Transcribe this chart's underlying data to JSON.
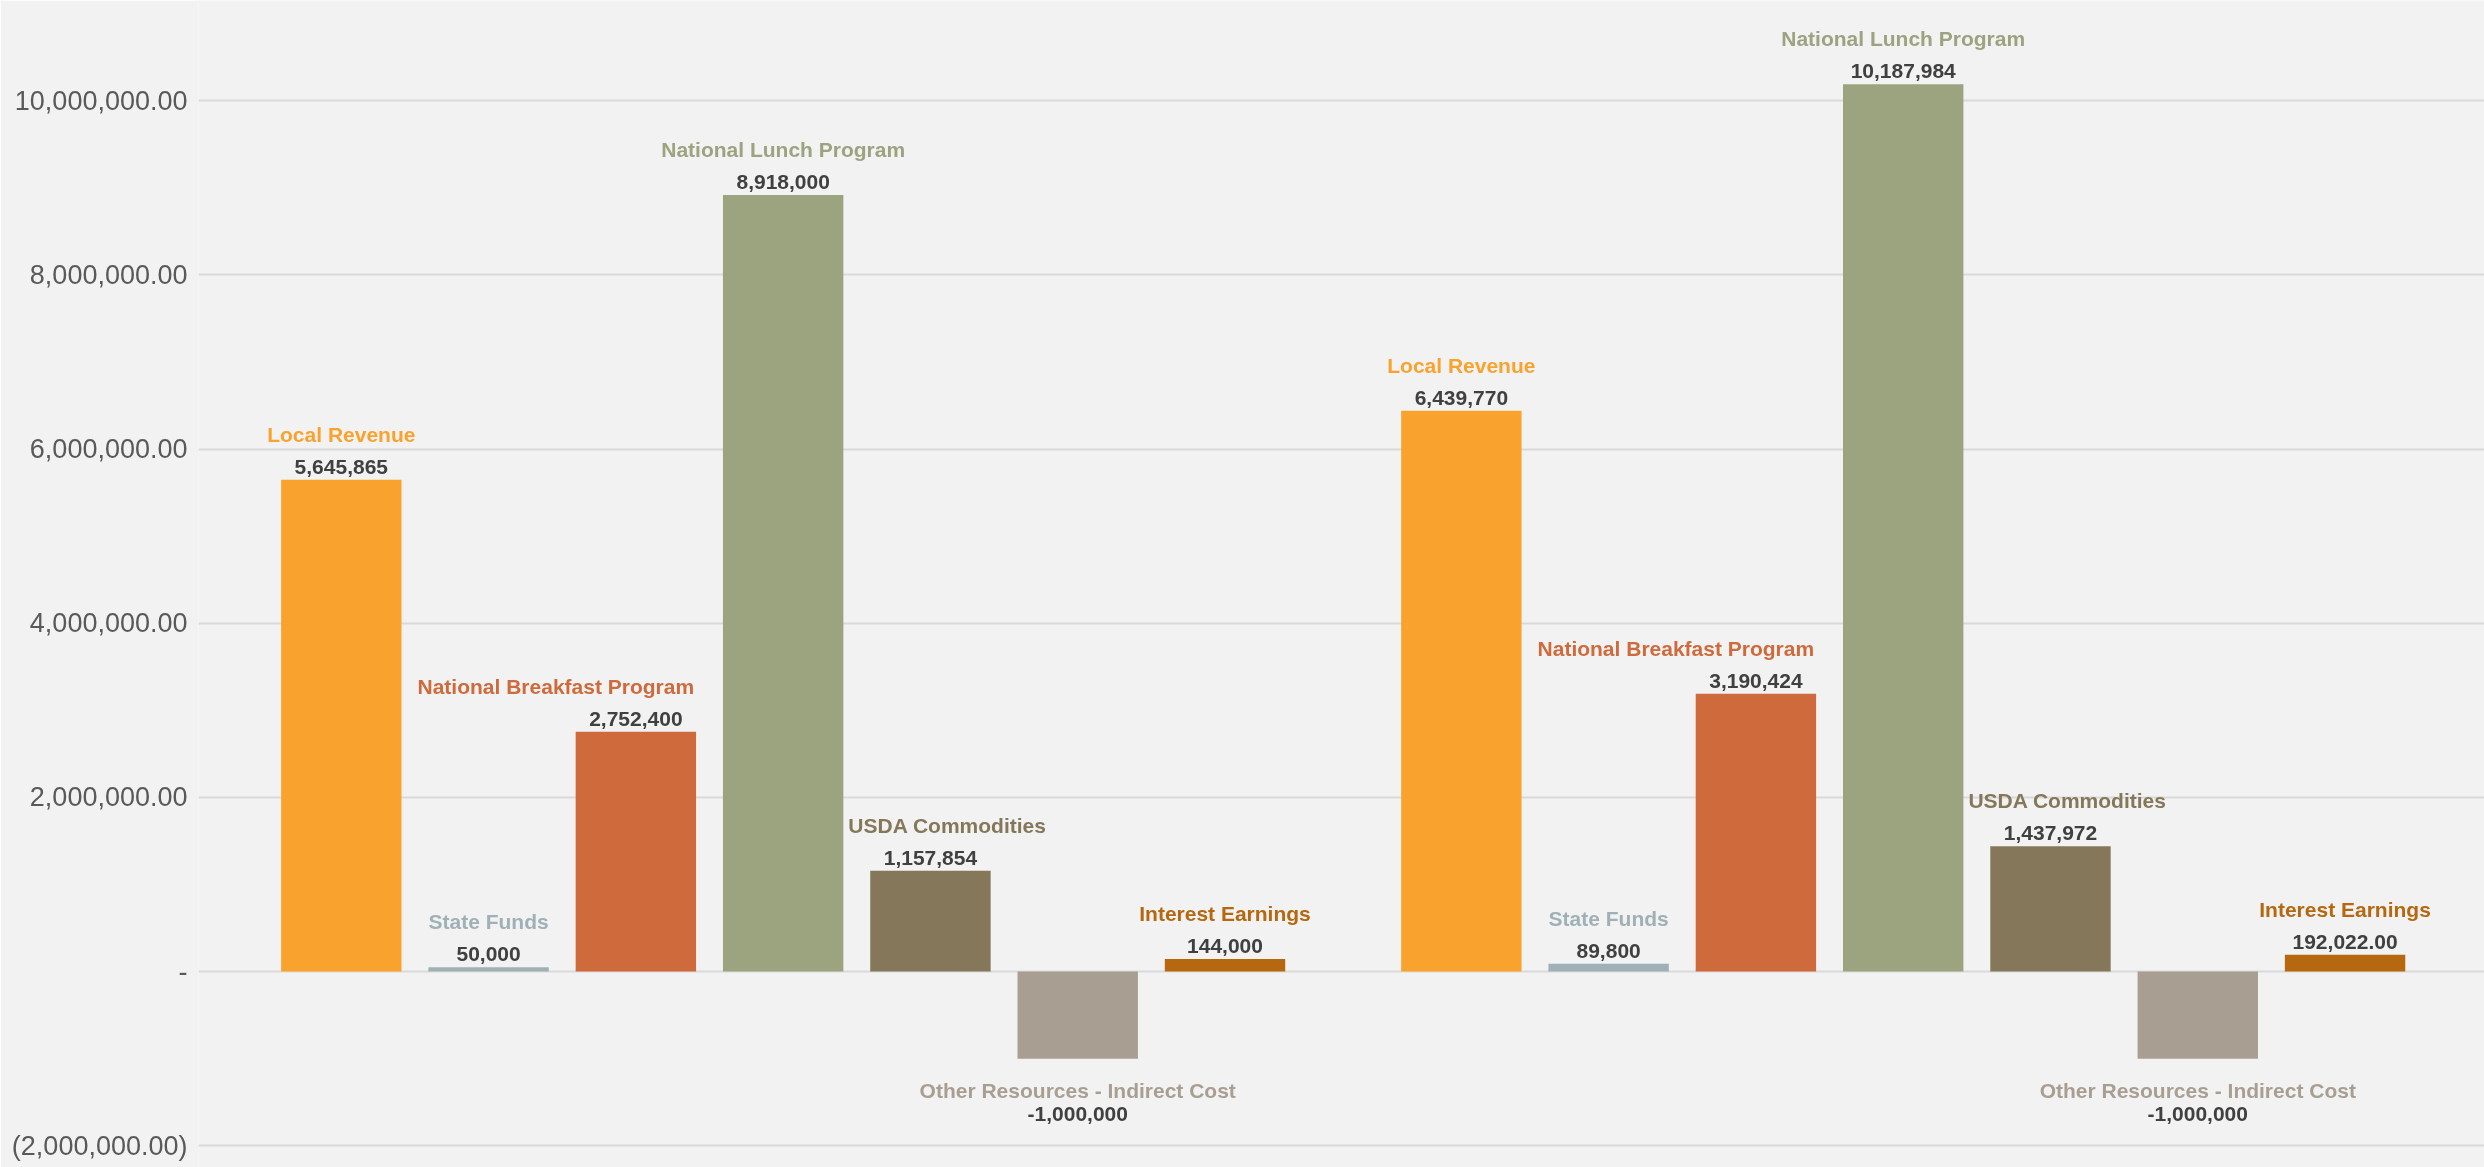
{
  "chart_data": {
    "type": "bar",
    "categories": [
      null,
      null
    ],
    "series": [
      {
        "name": "Local Revenue",
        "color": "#f9a32e",
        "values": [
          5645865,
          6439770
        ],
        "value_labels": [
          "5,645,865",
          "6,439,770"
        ]
      },
      {
        "name": "State Funds",
        "color": "#9fb1b6",
        "values": [
          50000,
          89800
        ],
        "value_labels": [
          "50,000",
          "89,800"
        ]
      },
      {
        "name": "National Breakfast Program",
        "color": "#cf6a3c",
        "values": [
          2752400,
          3190424
        ],
        "value_labels": [
          "2,752,400",
          "3,190,424"
        ]
      },
      {
        "name": "National Lunch Program",
        "color": "#9ba47f",
        "values": [
          8918000,
          10187984
        ],
        "value_labels": [
          "8,918,000",
          "10,187,984"
        ]
      },
      {
        "name": "USDA Commodities",
        "color": "#85775a",
        "values": [
          1157854,
          1437972
        ],
        "value_labels": [
          "1,157,854",
          "1,437,972"
        ]
      },
      {
        "name": "Other Resources - Indirect Cost",
        "color": "#a89e92",
        "values": [
          -1000000,
          -1000000
        ],
        "value_labels": [
          "-1,000,000",
          "-1,000,000"
        ]
      },
      {
        "name": "Interest Earnings",
        "color": "#b5680f",
        "values": [
          144000,
          192022
        ],
        "value_labels": [
          "144,000",
          "192,022.00"
        ]
      }
    ],
    "ylim": [
      -2250000,
      11150000
    ],
    "yticks": [
      {
        "value": -2000000,
        "label": "(2,000,000.00)"
      },
      {
        "value": 0,
        "label": "-"
      },
      {
        "value": 2000000,
        "label": "2,000,000.00"
      },
      {
        "value": 4000000,
        "label": "4,000,000.00"
      },
      {
        "value": 6000000,
        "label": "6,000,000.00"
      },
      {
        "value": 8000000,
        "label": "8,000,000.00"
      },
      {
        "value": 10000000,
        "label": "10,000,000.00"
      }
    ],
    "grid": "y",
    "tick_labels": "y"
  }
}
